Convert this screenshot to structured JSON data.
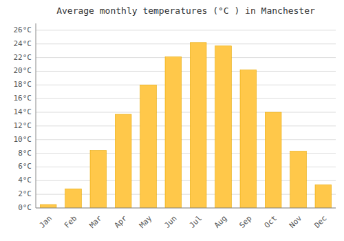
{
  "chart_data": {
    "type": "bar",
    "title": "Average monthly temperatures (°C ) in Manchester",
    "categories": [
      "Jan",
      "Feb",
      "Mar",
      "Apr",
      "May",
      "Jun",
      "Jul",
      "Aug",
      "Sep",
      "Oct",
      "Nov",
      "Dec"
    ],
    "values": [
      0.5,
      2.8,
      8.4,
      13.7,
      18.0,
      22.1,
      24.2,
      23.7,
      20.2,
      14.0,
      8.3,
      3.4
    ],
    "color": "#FFC84A",
    "ylim": [
      0,
      27
    ],
    "yticks": [
      {
        "value": 0,
        "label": "0°C"
      },
      {
        "value": 2,
        "label": "2°C"
      },
      {
        "value": 4,
        "label": "4°C"
      },
      {
        "value": 6,
        "label": "6°C"
      },
      {
        "value": 8,
        "label": "8°C"
      },
      {
        "value": 10,
        "label": "10°C"
      },
      {
        "value": 12,
        "label": "12°C"
      },
      {
        "value": 14,
        "label": "14°C"
      },
      {
        "value": 16,
        "label": "16°C"
      },
      {
        "value": 18,
        "label": "18°C"
      },
      {
        "value": 20,
        "label": "20°C"
      },
      {
        "value": 22,
        "label": "22°C"
      },
      {
        "value": 24,
        "label": "24°C"
      },
      {
        "value": 26,
        "label": "26°C"
      }
    ],
    "grid": true
  }
}
